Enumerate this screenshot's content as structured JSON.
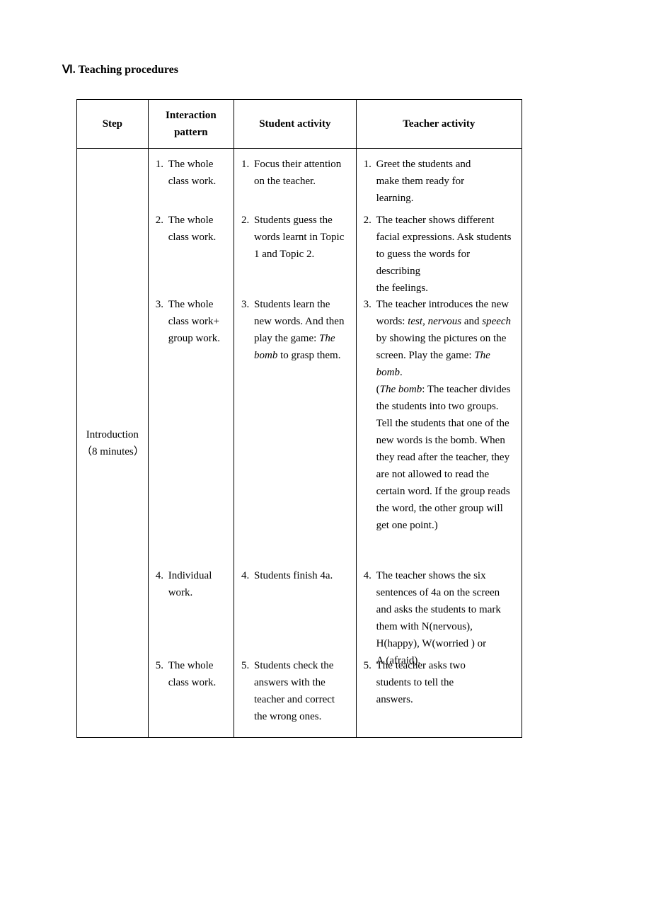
{
  "section_title": "Ⅵ. Teaching procedures",
  "headers": {
    "step": "Step",
    "interaction_l1": "Interaction",
    "interaction_l2": "pattern",
    "student": "Student activity",
    "teacher": "Teacher activity"
  },
  "step_label_l1": "Introduction",
  "step_label_l2": "（8 minutes）",
  "interaction": {
    "n1": "1.",
    "t1a": " The whole",
    "t1b": "class work.",
    "n2": "2.",
    "t2a": " The whole",
    "t2b": "class work.",
    "n3": "3.",
    "t3a": " The whole",
    "t3b": "class work+",
    "t3c": "group work.",
    "n4": "4.",
    "t4a": " Individual",
    "t4b": "work.",
    "n5": "5.",
    "t5a": " The whole",
    "t5b": "class work."
  },
  "student": {
    "n1": "1.",
    "t1a": " Focus their attention",
    "t1b": "on the teacher.",
    "n2": "2.",
    "t2a": " Students guess the",
    "t2b": "words learnt in Topic",
    "t2c": "1 and Topic 2.",
    "n3": "3.",
    "t3a": " Students learn the",
    "t3b": "new words. And then",
    "t3c": "play the game: ",
    "t3c_i": "The",
    "t3d_i": "bomb",
    "t3d": " to grasp them.",
    "n4": "4.",
    "t4a": " Students finish 4a.",
    "n5": "5.",
    "t5a": " Students check the",
    "t5b": "answers with the",
    "t5c": "teacher and correct",
    "t5d": "the wrong ones."
  },
  "teacher": {
    "n1": "1.",
    "t1a": " Greet the students and",
    "t1b": "make them ready for",
    "t1c": "learning.",
    "n2": "2.",
    "t2a": " The teacher shows different facial expressions. Ask students to guess the words for describing",
    "t2e": "the feelings.",
    "n3": "3.",
    "t3a": " The teacher introduces the new words: ",
    "t3a_i1": "test, nervous",
    "t3a_mid": " and ",
    "t3a_i2": "speech",
    "t3a_end": " by showing the pictures on the screen. Play the game: ",
    "t3a_i3": "The bomb",
    "t3a_dot": ".",
    "t3b_open": "(",
    "t3b_i": "The bomb",
    "t3b_rest": ": The teacher divides the students into two groups. Tell the students that one of the new words is the bomb. When they read after the teacher, they are not allowed to read the certain word. If the group reads the word, the other group will get one point.)",
    "n4": "4.",
    "t4a": " The teacher shows the six sentences of 4a on the screen and asks the students to mark them with N(nervous), H(happy), W(worried ) or",
    "t4f": "A (afraid).",
    "n5": "5.",
    "t5a": " The teacher asks two",
    "t5b": "students to tell the",
    "t5c": "answers."
  }
}
